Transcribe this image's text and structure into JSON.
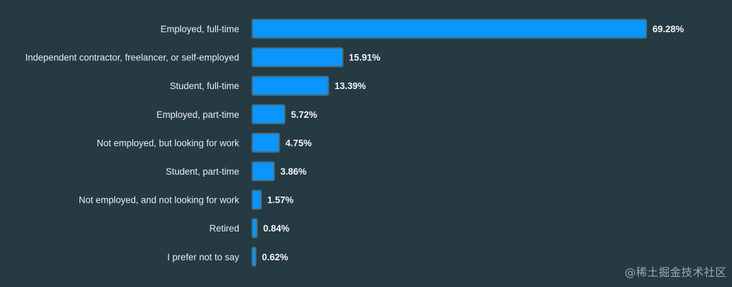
{
  "chart_data": {
    "type": "bar",
    "orientation": "horizontal",
    "categories": [
      "Employed, full-time",
      "Independent contractor, freelancer, or self-employed",
      "Student, full-time",
      "Employed, part-time",
      "Not employed, but looking for work",
      "Student, part-time",
      "Not employed, and not looking for work",
      "Retired",
      "I prefer not to say"
    ],
    "values": [
      69.28,
      15.91,
      13.39,
      5.72,
      4.75,
      3.86,
      1.57,
      0.84,
      0.62
    ],
    "value_labels": [
      "69.28%",
      "15.91%",
      "13.39%",
      "5.72%",
      "4.75%",
      "3.86%",
      "1.57%",
      "0.84%",
      "0.62%"
    ],
    "xlim": [
      0,
      69.28
    ],
    "grid": false,
    "legend": "none",
    "bar_color": "#0a95ff",
    "bar_outline_color": "#45707f"
  },
  "watermark": "@稀土掘金技术社区"
}
